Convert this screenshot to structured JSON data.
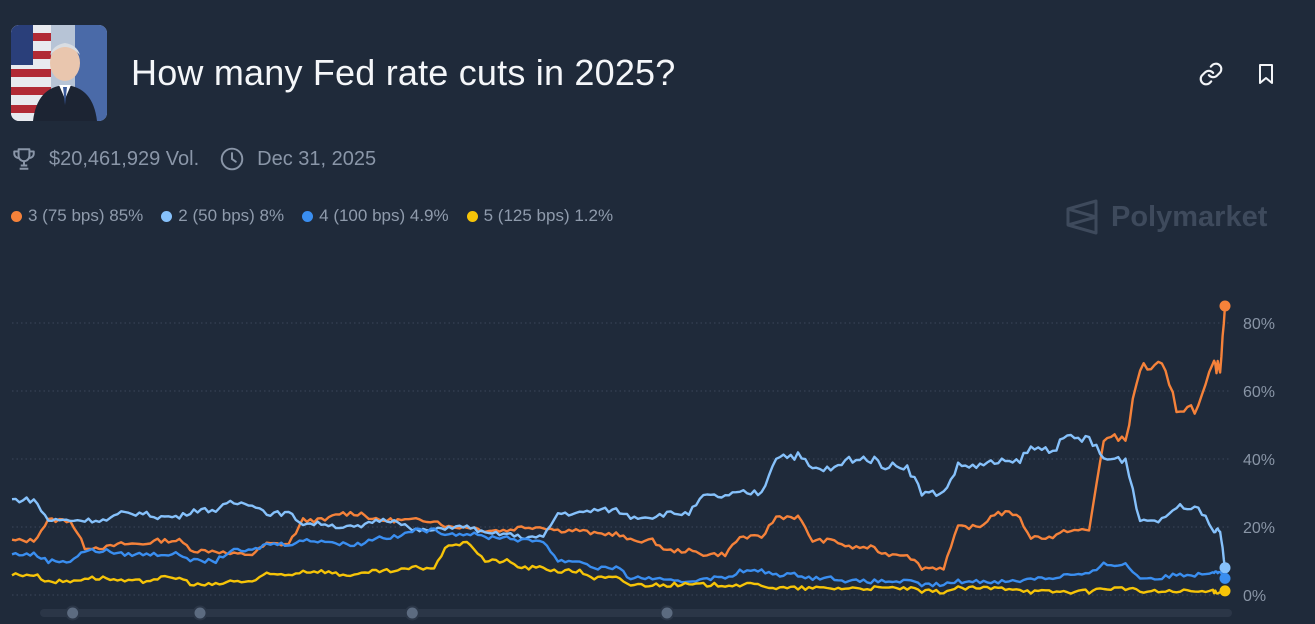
{
  "market": {
    "title": "How many Fed rate cuts in 2025?",
    "volume": "$20,461,929 Vol.",
    "end_date": "Dec 31, 2025",
    "watermark": "Polymarket"
  },
  "icons": {
    "link": "link-icon",
    "bookmark": "bookmark-icon",
    "trophy": "trophy-icon",
    "clock": "clock-icon",
    "logo": "polymarket-logo-icon"
  },
  "legend": [
    {
      "label": "3 (75 bps) 85%",
      "color": "#f5823a"
    },
    {
      "label": "2 (50 bps) 8%",
      "color": "#86c1fb"
    },
    {
      "label": "4 (100 bps) 4.9%",
      "color": "#3a8ef0"
    },
    {
      "label": "5 (125 bps) 1.2%",
      "color": "#f6c408"
    }
  ],
  "chart_data": {
    "type": "line",
    "title": "",
    "xlabel": "",
    "ylabel": "",
    "ylim": [
      0,
      100
    ],
    "yticks": [
      "0%",
      "20%",
      "40%",
      "60%",
      "80%"
    ],
    "grid": true,
    "x": [
      0,
      0.03,
      0.06,
      0.09,
      0.12,
      0.15,
      0.18,
      0.21,
      0.24,
      0.27,
      0.3,
      0.33,
      0.36,
      0.39,
      0.42,
      0.45,
      0.48,
      0.51,
      0.54,
      0.57,
      0.6,
      0.63,
      0.66,
      0.69,
      0.72,
      0.75,
      0.78,
      0.81,
      0.84,
      0.87,
      0.9,
      0.93,
      0.96,
      0.99,
      1.0
    ],
    "series": [
      {
        "name": "3 (75 bps)",
        "color": "#f5823a",
        "values": [
          16,
          22,
          14,
          15,
          16,
          13,
          12,
          15,
          22,
          24,
          22,
          22,
          20,
          19,
          20,
          19,
          18,
          16,
          13,
          12,
          17,
          23,
          16,
          14,
          12,
          8,
          20,
          24,
          17,
          19,
          46,
          67,
          55,
          67,
          85
        ]
      },
      {
        "name": "2 (50 bps)",
        "color": "#86c1fb",
        "values": [
          28,
          22,
          22,
          24,
          23,
          25,
          27,
          24,
          21,
          20,
          22,
          19,
          20,
          18,
          17,
          24,
          25,
          23,
          24,
          29,
          30,
          41,
          37,
          40,
          38,
          30,
          38,
          39,
          43,
          46,
          40,
          22,
          26,
          19,
          8
        ]
      },
      {
        "name": "4 (100 bps)",
        "color": "#3a8ef0",
        "values": [
          12,
          10,
          13,
          12,
          12,
          10,
          13,
          15,
          16,
          15,
          17,
          19,
          18,
          17,
          16,
          10,
          8,
          5,
          4,
          5,
          7,
          6,
          5,
          4,
          4,
          3,
          4,
          4,
          5,
          6,
          9,
          5,
          6,
          7,
          4.9
        ]
      },
      {
        "name": "5 (125 bps)",
        "color": "#f6c408",
        "values": [
          6,
          4,
          5,
          4,
          5,
          3,
          4,
          6,
          7,
          6,
          7,
          8,
          15,
          10,
          8,
          7,
          5,
          3,
          3,
          3,
          3,
          2,
          2,
          2,
          2,
          1,
          2,
          2,
          1,
          1,
          2,
          1,
          1,
          1,
          1.2
        ]
      }
    ]
  },
  "timeline": {
    "handles": [
      0.05,
      0.155,
      0.33,
      0.54
    ]
  }
}
